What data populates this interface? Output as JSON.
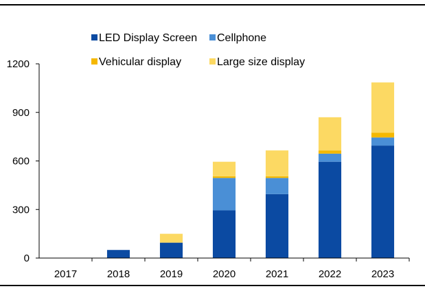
{
  "chart_data": {
    "type": "bar",
    "stacked": true,
    "categories": [
      "2017",
      "2018",
      "2019",
      "2020",
      "2021",
      "2022",
      "2023"
    ],
    "series": [
      {
        "name": "LED Display Screen",
        "color": "#0b4aa2",
        "values": [
          0,
          50,
          95,
          295,
          395,
          595,
          695
        ]
      },
      {
        "name": "Cellphone",
        "color": "#4a8fd6",
        "values": [
          0,
          0,
          0,
          200,
          100,
          50,
          50
        ]
      },
      {
        "name": "Vehicular display",
        "color": "#f5b800",
        "values": [
          0,
          0,
          0,
          10,
          10,
          20,
          30
        ]
      },
      {
        "name": "Large size display",
        "color": "#fcd963",
        "values": [
          0,
          0,
          55,
          90,
          160,
          205,
          310
        ]
      }
    ],
    "title": "",
    "xlabel": "",
    "ylabel": "",
    "ylim": [
      0,
      1200
    ],
    "yticks": [
      "0",
      "300",
      "600",
      "900",
      "1200"
    ],
    "grid": false,
    "legend": "top"
  }
}
